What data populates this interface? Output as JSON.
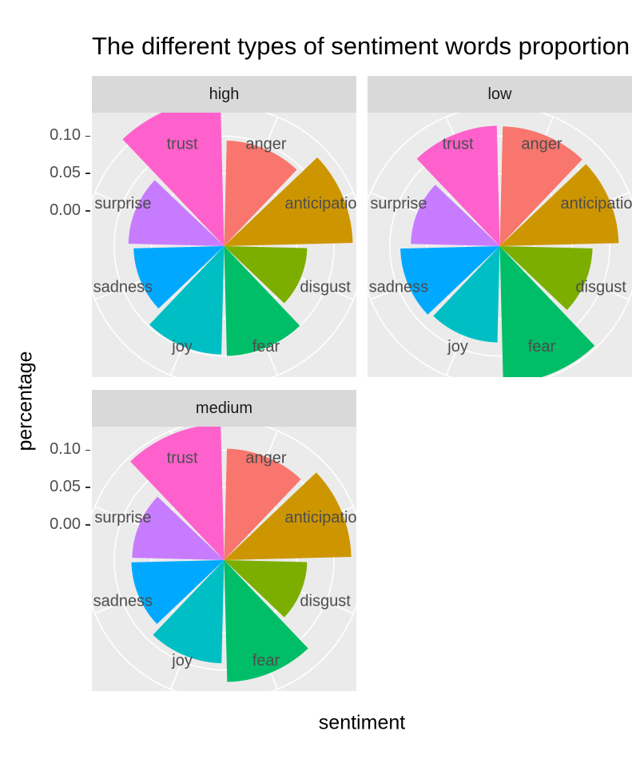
{
  "chart_data": {
    "type": "pie",
    "coord": "polar",
    "title": "The different types of sentiment words proportion",
    "xlabel": "sentiment",
    "ylabel": "percentage",
    "y_ticks": [
      "0.00",
      "0.05",
      "0.10"
    ],
    "ylim": [
      -0.05,
      0.14
    ],
    "categories": [
      "anger",
      "anticipation",
      "disgust",
      "fear",
      "joy",
      "sadness",
      "surprise",
      "trust"
    ],
    "colors": [
      "#F8766D",
      "#CD9600",
      "#7CAE00",
      "#00BE67",
      "#00BFC4",
      "#00A9FF",
      "#C77CFF",
      "#FF61CC"
    ],
    "facets": [
      {
        "name": "high",
        "values": [
          0.094,
          0.125,
          0.064,
          0.1,
          0.098,
          0.074,
          0.081,
          0.15
        ]
      },
      {
        "name": "low",
        "values": [
          0.113,
          0.112,
          0.077,
          0.137,
          0.082,
          0.086,
          0.072,
          0.114
        ]
      },
      {
        "name": "medium",
        "values": [
          0.102,
          0.123,
          0.064,
          0.116,
          0.091,
          0.077,
          0.076,
          0.135
        ]
      }
    ]
  }
}
